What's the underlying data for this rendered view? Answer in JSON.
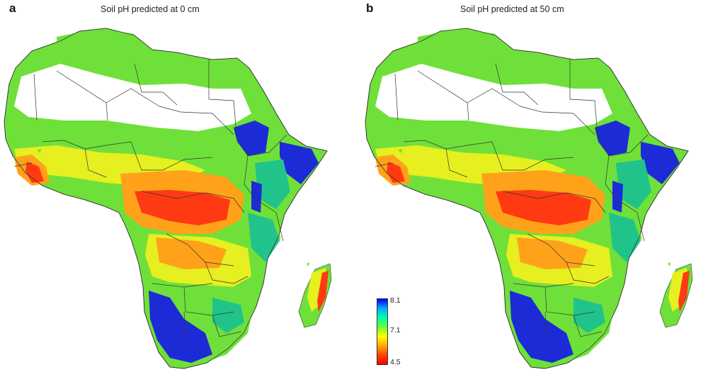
{
  "panels": [
    {
      "letter": "a",
      "title": "Soil pH predicted at 0 cm"
    },
    {
      "letter": "b",
      "title": "Soil pH predicted at 50 cm"
    }
  ],
  "legend": {
    "max_label": "8.1",
    "mid_label": "7.1",
    "min_label": "4.5",
    "colors": [
      "#0000ff",
      "#00aaff",
      "#00ffaa",
      "#66ff33",
      "#ffff00",
      "#ffaa00",
      "#ff4400",
      "#ff0000"
    ]
  },
  "map_colors": {
    "desert": "#ffffff",
    "high": "#1d2bd6",
    "mid_high": "#20c48a",
    "mid": "#6fe03a",
    "mid_low": "#e6ef1f",
    "low": "#ffa21a",
    "very_low": "#ff3a12",
    "border": "#333333"
  }
}
